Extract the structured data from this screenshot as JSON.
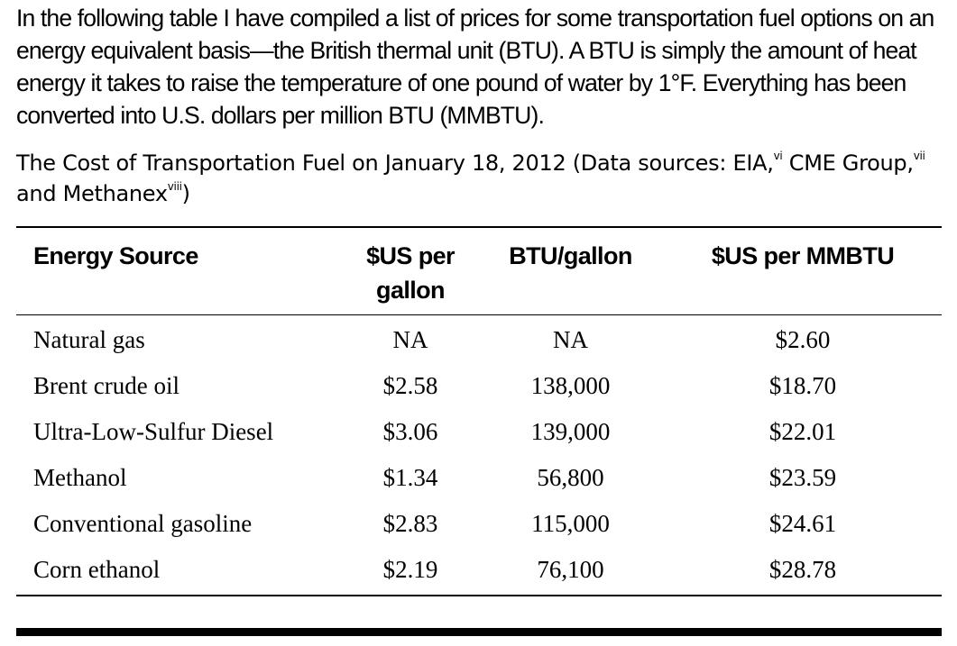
{
  "intro": {
    "text": "In the following table I have compiled a list of prices for some transportation fuel options on an energy equivalent basis—the British thermal unit (BTU). A BTU is simply the amount of heat energy it takes to raise the temperature of one pound of water by 1°F. Everything has been converted into U.S. dollars per million BTU (MMBTU)."
  },
  "caption": {
    "part1": "The Cost of Transportation Fuel on January 18, 2012 (Data sources: EIA,",
    "sup1": "vi",
    "part2": " CME Group,",
    "sup2": "vii",
    "part3": " and Methanex",
    "sup3": "viii",
    "part4": ")"
  },
  "table": {
    "headers": {
      "source": "Energy Source",
      "price_line1": "$US per",
      "price_line2": "gallon",
      "btu": "BTU/gallon",
      "mmbtu": "$US per MMBTU"
    },
    "rows": [
      {
        "source": "Natural gas",
        "price": "NA",
        "btu": "NA",
        "mmbtu": "$2.60"
      },
      {
        "source": "Brent crude oil",
        "price": "$2.58",
        "btu": "138,000",
        "mmbtu": "$18.70"
      },
      {
        "source": "Ultra-Low-Sulfur Diesel",
        "price": "$3.06",
        "btu": "139,000",
        "mmbtu": "$22.01"
      },
      {
        "source": "Methanol",
        "price": "$1.34",
        "btu": "56,800",
        "mmbtu": "$23.59"
      },
      {
        "source": "Conventional gasoline",
        "price": "$2.83",
        "btu": "115,000",
        "mmbtu": "$24.61"
      },
      {
        "source": "Corn ethanol",
        "price": "$2.19",
        "btu": "76,100",
        "mmbtu": "$28.78"
      }
    ]
  }
}
